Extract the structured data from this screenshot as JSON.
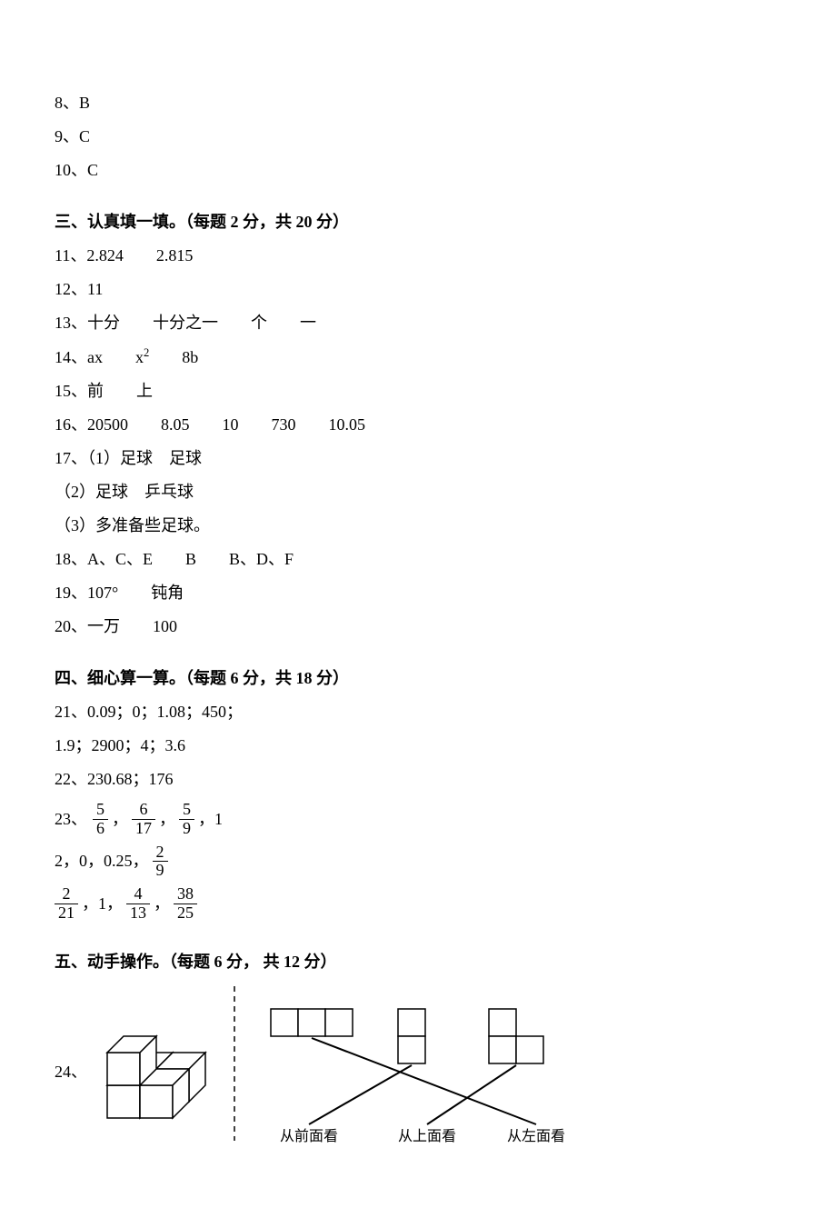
{
  "answers_top": [
    {
      "n": "8",
      "v": "B"
    },
    {
      "n": "9",
      "v": "C"
    },
    {
      "n": "10",
      "v": "C"
    }
  ],
  "section3": {
    "title": "三、认真填一填。（每题 2 分，共 20 分）",
    "items": {
      "q11": "11、2.824　　2.815",
      "q12": "12、11",
      "q13": "13、十分　　十分之一　　个　　一",
      "q14_pre": "14、ax　　x",
      "q14_post": "　　8b",
      "q15": "15、前　　上",
      "q16": "16、20500　　8.05　　10　　730　　10.05",
      "q17a": "17、（1）足球　足球",
      "q17b": "（2）足球　乒乓球",
      "q17c": "（3）多准备些足球。",
      "q18": "18、A、C、E　　B　　B、D、F",
      "q19": "19、107°　　钝角",
      "q20": "20、一万　　100"
    }
  },
  "section4": {
    "title": "四、细心算一算。（每题 6 分，共 18 分）",
    "q21a": "21、0.09；0；1.08；450；",
    "q21b": "1.9；2900；4；3.6",
    "q22": "22、230.68；176",
    "q23": {
      "row1_prefix": "23、",
      "row1_fracs": [
        {
          "num": "5",
          "den": "6"
        },
        {
          "num": "6",
          "den": "17"
        },
        {
          "num": "5",
          "den": "9"
        }
      ],
      "row1_tail": "，1",
      "row2_text": "2，0，0.25，",
      "row2_frac": {
        "num": "2",
        "den": "9"
      },
      "row3_parts": [
        {
          "type": "frac",
          "num": "2",
          "den": "21"
        },
        {
          "type": "text",
          "v": "，1，"
        },
        {
          "type": "frac",
          "num": "4",
          "den": "13"
        },
        {
          "type": "text",
          "v": "，"
        },
        {
          "type": "frac",
          "num": "38",
          "den": "25"
        }
      ]
    }
  },
  "section5": {
    "title": "五、动手操作。（每题 6 分， 共 12 分）",
    "q24_label": "24、",
    "diagram": {
      "cube_stroke": "#000000",
      "line_stroke": "#000000",
      "dash_stroke": "#000000",
      "labels": {
        "front": "从前面看",
        "top": "从上面看",
        "left": "从左面看"
      },
      "label_fontsize": 16,
      "label_font": "SimSun, serif",
      "grid_cell": 30,
      "views": {
        "front": {
          "cells": [
            [
              0,
              0
            ],
            [
              1,
              0
            ],
            [
              2,
              0
            ]
          ]
        },
        "top": {
          "cells": [
            [
              0,
              1
            ],
            [
              0,
              0
            ]
          ]
        },
        "left": {
          "cells": [
            [
              0,
              1
            ],
            [
              0,
              0
            ],
            [
              1,
              0
            ]
          ]
        }
      },
      "match_lines": [
        {
          "from": "front",
          "to": "left"
        },
        {
          "from": "top",
          "to": "front"
        },
        {
          "from": "left",
          "to": "top"
        }
      ]
    }
  }
}
